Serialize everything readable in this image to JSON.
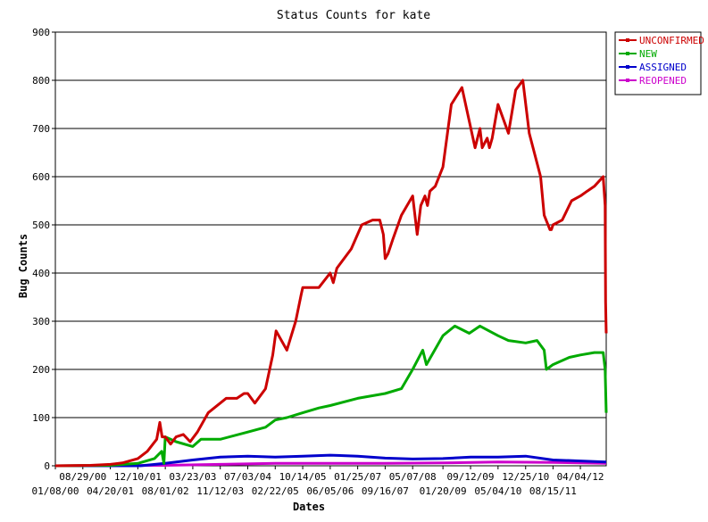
{
  "chart_data": {
    "type": "line",
    "title": "Status Counts for kate",
    "xlabel": "Dates",
    "ylabel": "Bug Counts",
    "ylim": [
      0,
      900
    ],
    "yticks": [
      0,
      100,
      200,
      300,
      400,
      500,
      600,
      700,
      800,
      900
    ],
    "grid": "horizontal",
    "legend_position": "top-right",
    "x_tick_labels_top": [
      "08/29/00",
      "12/10/01",
      "03/23/03",
      "07/03/04",
      "10/14/05",
      "01/25/07",
      "05/07/08",
      "09/12/09",
      "12/25/10",
      "04/04/12"
    ],
    "x_tick_labels_bottom": [
      "01/08/00",
      "04/20/01",
      "08/01/02",
      "11/12/03",
      "02/22/05",
      "06/05/06",
      "09/16/07",
      "01/20/09",
      "05/04/10",
      "08/15/11"
    ],
    "x_ticks": [
      "2000-01-08",
      "2000-08-29",
      "2001-04-20",
      "2001-12-10",
      "2002-08-01",
      "2003-03-23",
      "2003-11-12",
      "2004-07-03",
      "2005-02-22",
      "2005-10-14",
      "2006-06-05",
      "2007-01-25",
      "2007-09-16",
      "2008-05-07",
      "2009-01-20",
      "2009-09-12",
      "2010-05-04",
      "2010-12-25",
      "2011-08-15",
      "2012-04-04"
    ],
    "xlim": [
      "2000-01-08",
      "2012-11-10"
    ],
    "series": [
      {
        "name": "UNCONFIRMED",
        "color": "#cc0000",
        "x": [
          "2000-01-08",
          "2000-11-01",
          "2001-04-20",
          "2001-08-01",
          "2001-12-10",
          "2002-03-01",
          "2002-05-20",
          "2002-06-15",
          "2002-07-05",
          "2002-08-01",
          "2002-09-15",
          "2002-11-01",
          "2003-01-01",
          "2003-03-01",
          "2003-05-01",
          "2003-08-01",
          "2004-01-01",
          "2004-04-01",
          "2004-06-01",
          "2004-07-03",
          "2004-09-01",
          "2004-12-01",
          "2005-02-01",
          "2005-03-01",
          "2005-06-01",
          "2005-08-15",
          "2005-10-01",
          "2005-10-14",
          "2006-03-01",
          "2006-06-05",
          "2006-07-01",
          "2006-08-01",
          "2006-12-01",
          "2007-03-01",
          "2007-06-01",
          "2007-08-01",
          "2007-09-01",
          "2007-09-16",
          "2007-10-10",
          "2007-11-20",
          "2008-02-01",
          "2008-05-07",
          "2008-06-15",
          "2008-07-15",
          "2008-08-20",
          "2008-09-10",
          "2008-10-01",
          "2008-11-15",
          "2009-01-20",
          "2009-04-01",
          "2009-07-01",
          "2009-10-20",
          "2009-12-01",
          "2009-12-20",
          "2010-02-01",
          "2010-02-20",
          "2010-03-15",
          "2010-05-04",
          "2010-08-01",
          "2010-10-01",
          "2010-12-01",
          "2011-01-25",
          "2011-05-01",
          "2011-06-01",
          "2011-07-20",
          "2011-08-01",
          "2011-08-15",
          "2011-11-01",
          "2012-01-20",
          "2012-04-04",
          "2012-06-01",
          "2012-08-01",
          "2012-10-15",
          "2012-11-01",
          "2012-11-05",
          "2012-11-10"
        ],
        "values": [
          0,
          1,
          3,
          6,
          15,
          30,
          55,
          90,
          60,
          60,
          45,
          60,
          65,
          50,
          70,
          110,
          140,
          140,
          150,
          150,
          130,
          160,
          230,
          280,
          240,
          300,
          355,
          370,
          370,
          400,
          380,
          410,
          450,
          500,
          510,
          510,
          480,
          430,
          440,
          470,
          520,
          560,
          480,
          540,
          560,
          540,
          570,
          580,
          620,
          750,
          785,
          660,
          700,
          660,
          680,
          660,
          680,
          750,
          690,
          780,
          800,
          690,
          600,
          520,
          490,
          490,
          500,
          510,
          550,
          560,
          570,
          580,
          600,
          540,
          340,
          275
        ],
        "note": ""
      },
      {
        "name": "NEW",
        "color": "#00aa00",
        "x": [
          "2000-01-08",
          "2001-04-20",
          "2001-12-10",
          "2002-05-01",
          "2002-07-01",
          "2002-07-20",
          "2002-08-01",
          "2002-11-01",
          "2003-03-23",
          "2003-06-01",
          "2003-11-12",
          "2004-07-03",
          "2004-12-01",
          "2005-02-22",
          "2005-06-01",
          "2005-10-14",
          "2006-03-01",
          "2006-06-05",
          "2007-01-25",
          "2007-09-16",
          "2008-02-01",
          "2008-05-07",
          "2008-08-01",
          "2008-09-01",
          "2009-01-20",
          "2009-05-01",
          "2009-09-01",
          "2009-12-01",
          "2010-05-04",
          "2010-08-01",
          "2010-12-25",
          "2011-04-01",
          "2011-06-01",
          "2011-06-20",
          "2011-08-15",
          "2012-01-01",
          "2012-04-04",
          "2012-08-01",
          "2012-10-15",
          "2012-11-01",
          "2012-11-10"
        ],
        "values": [
          0,
          1,
          5,
          15,
          30,
          5,
          60,
          50,
          40,
          55,
          55,
          70,
          80,
          95,
          100,
          110,
          120,
          125,
          140,
          150,
          160,
          200,
          240,
          210,
          270,
          290,
          275,
          290,
          270,
          260,
          255,
          260,
          240,
          200,
          210,
          225,
          230,
          235,
          235,
          200,
          110
        ],
        "note": ""
      },
      {
        "name": "ASSIGNED",
        "color": "#0000cc",
        "x": [
          "2000-01-08",
          "2002-01-01",
          "2002-08-01",
          "2003-03-23",
          "2003-11-12",
          "2004-07-03",
          "2005-02-22",
          "2005-10-14",
          "2006-06-05",
          "2007-01-25",
          "2007-09-16",
          "2008-05-07",
          "2009-01-20",
          "2009-09-12",
          "2010-05-04",
          "2010-12-25",
          "2011-08-15",
          "2012-04-04",
          "2012-11-10"
        ],
        "values": [
          0,
          0,
          5,
          12,
          18,
          20,
          18,
          20,
          22,
          20,
          16,
          14,
          15,
          18,
          18,
          20,
          12,
          10,
          8
        ],
        "note": ""
      },
      {
        "name": "REOPENED",
        "color": "#cc00cc",
        "x": [
          "2000-01-08",
          "2002-08-01",
          "2003-11-12",
          "2005-02-22",
          "2006-06-05",
          "2007-09-16",
          "2009-01-20",
          "2010-05-04",
          "2011-08-15",
          "2012-11-10"
        ],
        "values": [
          0,
          1,
          3,
          5,
          5,
          5,
          6,
          8,
          7,
          5
        ],
        "note": ""
      }
    ]
  }
}
